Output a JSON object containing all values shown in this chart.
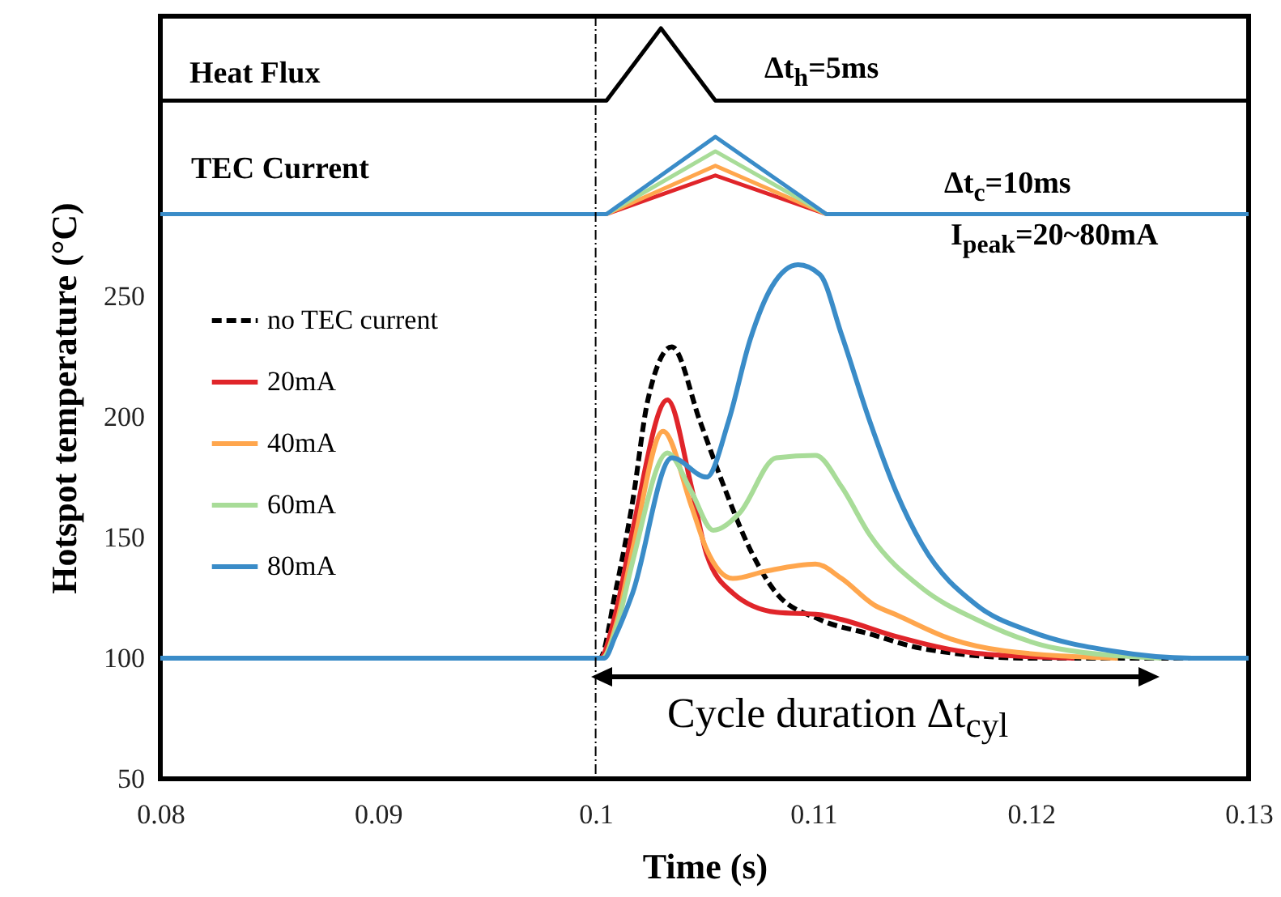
{
  "chart_data": {
    "type": "line",
    "xlabel": "Time (s)",
    "ylabel": "Hotspot temperature (°C)",
    "xlim": [
      0.08,
      0.13
    ],
    "xticks": [
      0.08,
      0.09,
      0.1,
      0.11,
      0.12,
      0.13
    ],
    "ylim": [
      50,
      366
    ],
    "yticks": [
      50,
      100,
      150,
      200,
      250
    ],
    "grid": false,
    "legend": "left",
    "ref_lines": [
      {
        "axis": "x",
        "value": 0.1,
        "line_style": "dashed",
        "color": "#000000"
      }
    ],
    "annotations": [
      "Heat Flux",
      "Δt$_{h}$=5ms",
      "TEC Current",
      "Δt$_{c}$=10ms",
      "I$_{peak}$=20~80mA",
      "Cycle duration Δt$_{cyl}$"
    ],
    "series": [
      {
        "color": "#000000",
        "x": [
          0.08,
          0.1005,
          0.103,
          0.1055,
          0.13
        ],
        "values": [
          331,
          331,
          361,
          331,
          331
        ]
      },
      {
        "color": "#e0252a",
        "x": [
          0.1005,
          0.1055,
          0.1106
        ],
        "values": [
          284,
          300,
          284
        ]
      },
      {
        "color": "#ffa64d",
        "x": [
          0.1005,
          0.1055,
          0.1106
        ],
        "values": [
          284,
          304,
          284
        ]
      },
      {
        "color": "#a8dc98",
        "x": [
          0.1005,
          0.1055,
          0.1106
        ],
        "values": [
          284,
          310,
          284
        ]
      },
      {
        "color": "#3a8cc8",
        "x": [
          0.08,
          0.1005,
          0.1055,
          0.1106,
          0.13
        ],
        "values": [
          284,
          284,
          316,
          284,
          284
        ]
      },
      {
        "name": "no TEC current",
        "color": "#000000",
        "line_style": "dashed",
        "x": [
          0.08,
          0.1,
          0.1002,
          0.1009,
          0.1017,
          0.1024,
          0.1035,
          0.1048,
          0.1059,
          0.1071,
          0.1083,
          0.1103,
          0.1126,
          0.115,
          0.12,
          0.13
        ],
        "values": [
          100,
          100,
          100,
          127,
          165,
          207,
          229,
          198,
          171,
          145,
          127,
          116,
          110,
          104,
          100,
          100
        ]
      },
      {
        "name": "20mA",
        "color": "#e0252a",
        "x": [
          0.08,
          0.1,
          0.1002,
          0.1009,
          0.1017,
          0.1033,
          0.1044,
          0.1051,
          0.1063,
          0.1083,
          0.1103,
          0.1113,
          0.1138,
          0.1175,
          0.122
        ],
        "values": [
          100,
          100,
          100,
          118,
          153,
          207,
          171,
          143,
          127,
          119,
          118,
          116,
          109,
          102,
          100
        ]
      },
      {
        "name": "40mA",
        "color": "#ffa64d",
        "x": [
          0.08,
          0.1,
          0.1003,
          0.101,
          0.1017,
          0.1031,
          0.1044,
          0.1051,
          0.1063,
          0.1078,
          0.1101,
          0.1113,
          0.1128,
          0.1138,
          0.1163,
          0.1188,
          0.124
        ],
        "values": [
          100,
          100,
          100,
          116,
          145,
          194,
          163,
          145,
          133,
          136,
          139,
          133,
          122,
          118,
          108,
          103,
          100
        ]
      },
      {
        "name": "60mA",
        "color": "#a8dc98",
        "x": [
          0.08,
          0.1,
          0.1003,
          0.101,
          0.1017,
          0.1033,
          0.1044,
          0.1054,
          0.1066,
          0.1083,
          0.1101,
          0.1113,
          0.1126,
          0.115,
          0.1175,
          0.1212,
          0.126
        ],
        "values": [
          100,
          100,
          100,
          114,
          140,
          185,
          169,
          153,
          160,
          183,
          184,
          171,
          151,
          129,
          116,
          104,
          100
        ]
      },
      {
        "name": "80mA",
        "color": "#3a8cc8",
        "x": [
          0.08,
          0.1,
          0.1004,
          0.1009,
          0.1017,
          0.1035,
          0.1051,
          0.1061,
          0.1071,
          0.1081,
          0.1093,
          0.1103,
          0.1113,
          0.1126,
          0.1138,
          0.115,
          0.1175,
          0.12,
          0.1237,
          0.1274,
          0.13
        ],
        "values": [
          100,
          100,
          100,
          109,
          127,
          183,
          175,
          198,
          232,
          254,
          263,
          259,
          234,
          198,
          169,
          147,
          122,
          111,
          103,
          100,
          100
        ]
      }
    ]
  }
}
